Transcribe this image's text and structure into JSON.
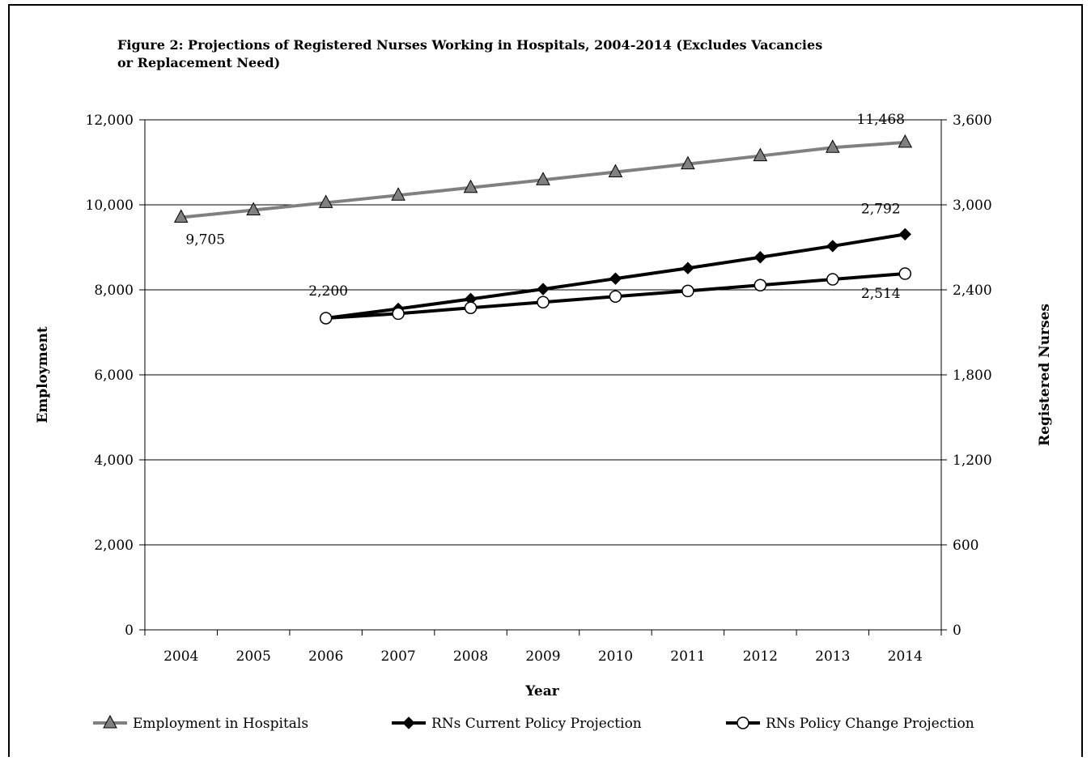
{
  "chart_data": {
    "type": "line",
    "title_line1": "Figure 2: Projections of Registered Nurses Working in Hospitals, 2004-2014 (Excludes Vacancies",
    "title_line2": "or Replacement Need)",
    "xlabel": "Year",
    "ylabel_left": "Employment",
    "ylabel_right": "Registered Nurses",
    "categories": [
      "2004",
      "2005",
      "2006",
      "2007",
      "2008",
      "2009",
      "2010",
      "2011",
      "2012",
      "2013",
      "2014"
    ],
    "ylim_left": [
      0,
      12000
    ],
    "ylim_right": [
      0,
      3600
    ],
    "yticks_left": [
      "0",
      "2,000",
      "4,000",
      "6,000",
      "8,000",
      "10,000",
      "12,000"
    ],
    "yticks_right": [
      "0",
      "600",
      "1,200",
      "1,800",
      "2,400",
      "3,000",
      "3,600"
    ],
    "grid": true,
    "legend_position": "bottom",
    "series": [
      {
        "name": "Employment in Hospitals",
        "axis": "left",
        "marker": "triangle",
        "color": "#808080",
        "values": [
          9705,
          9876,
          10049,
          10225,
          10404,
          10586,
          10771,
          10960,
          11151,
          11347,
          11468
        ],
        "labels": [
          {
            "index": 0,
            "text": "9,705"
          },
          {
            "index": 10,
            "text": "11,468"
          }
        ]
      },
      {
        "name": "RNs Current Policy Projection",
        "axis": "right",
        "marker": "diamond",
        "color": "#000000",
        "values": [
          null,
          null,
          2200,
          2266,
          2335,
          2405,
          2479,
          2553,
          2630,
          2709,
          2792
        ],
        "labels": [
          {
            "index": 10,
            "text": "2,792"
          }
        ]
      },
      {
        "name": "RNs Policy Change Projection",
        "axis": "right",
        "marker": "circle",
        "color": "#000000",
        "values": [
          null,
          null,
          2200,
          2232,
          2273,
          2313,
          2353,
          2392,
          2433,
          2474,
          2514
        ],
        "labels": [
          {
            "index": 2,
            "text": "2,200"
          },
          {
            "index": 10,
            "text": "2,514"
          }
        ]
      }
    ]
  }
}
